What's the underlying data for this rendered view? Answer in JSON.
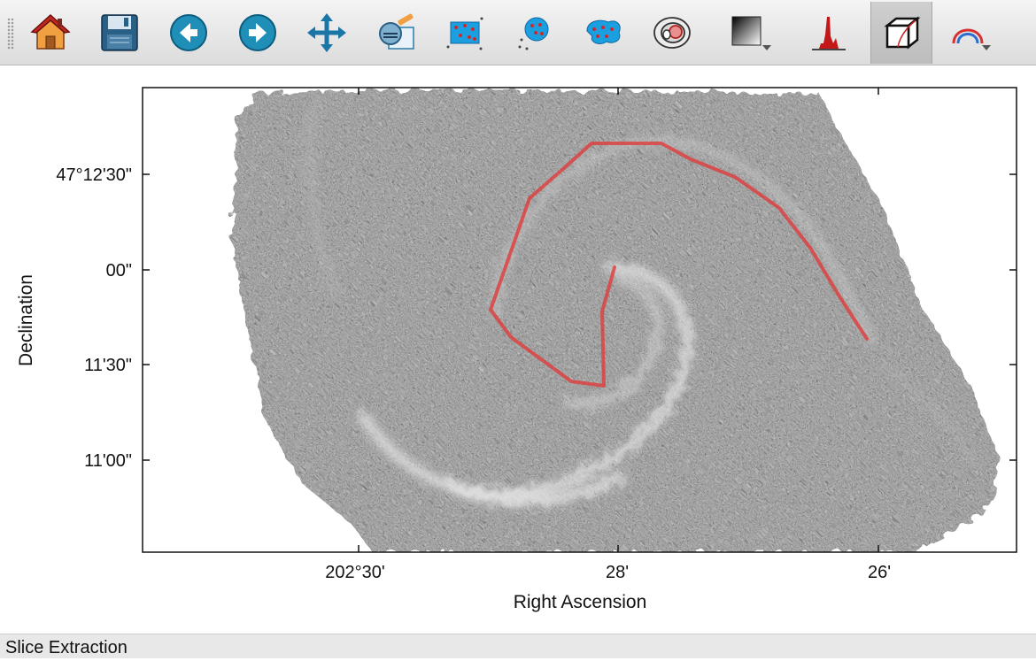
{
  "toolbar": {
    "buttons": [
      {
        "name": "home-icon",
        "tooltip": "Reset view"
      },
      {
        "name": "save-icon",
        "tooltip": "Save"
      },
      {
        "name": "back-icon",
        "tooltip": "Back"
      },
      {
        "name": "forward-icon",
        "tooltip": "Forward"
      },
      {
        "name": "pan-icon",
        "tooltip": "Pan"
      },
      {
        "name": "contrast-icon",
        "tooltip": "Contrast"
      },
      {
        "name": "rectangle-roi-icon",
        "tooltip": "Rectangle ROI"
      },
      {
        "name": "circle-roi-icon",
        "tooltip": "Circle ROI"
      },
      {
        "name": "polygon-roi-icon",
        "tooltip": "Polygon ROI"
      },
      {
        "name": "contour-icon",
        "tooltip": "Contour"
      },
      {
        "name": "colormap-icon",
        "tooltip": "Colormap"
      },
      {
        "name": "histogram-icon",
        "tooltip": "Histogram"
      },
      {
        "name": "cube-icon",
        "tooltip": "Slice mode"
      },
      {
        "name": "spectrum-icon",
        "tooltip": "Spectrum"
      }
    ],
    "active_button": "cube-icon"
  },
  "plot": {
    "x_axis_label": "Right Ascension",
    "y_axis_label": "Declination",
    "x_tick_labels": [
      "202°30'",
      "28'",
      "26'"
    ],
    "y_tick_labels": [
      "47°12'30\"",
      "00\"",
      "11'30\"",
      "11'00\""
    ],
    "slice_path_color": "#e03c3c",
    "image_colormap": "gray"
  },
  "status": {
    "text": "Slice Extraction"
  }
}
